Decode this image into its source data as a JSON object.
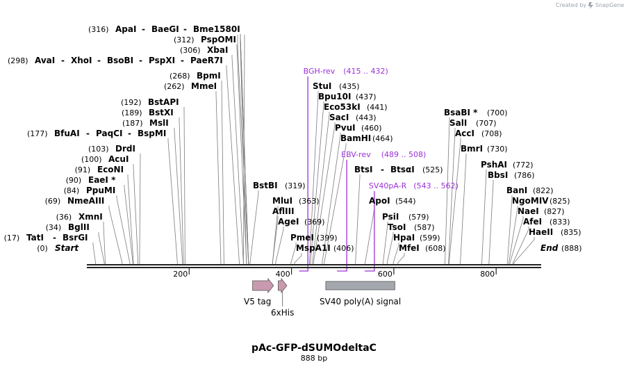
{
  "credit": "Created by",
  "brand": "SnapGene",
  "title": "pAc-GFP-dSUMOdeltaC",
  "length_label": "888 bp",
  "ruler": {
    "total_bp": 888,
    "ticks": [
      200,
      400,
      600,
      800
    ]
  },
  "sites": [
    {
      "row": 0,
      "parts": [
        {
          "t": "(316)",
          "k": "p"
        },
        {
          "t": "ApaI",
          "k": "n"
        },
        {
          "t": "-",
          "k": "s"
        },
        {
          "t": "BaeGI",
          "k": "n"
        },
        {
          "t": "-",
          "k": "s"
        },
        {
          "t": "Bme1580I",
          "k": "n"
        }
      ],
      "lines": [
        316,
        316,
        316
      ]
    },
    {
      "row": 1,
      "parts": [
        {
          "t": "(312)",
          "k": "p"
        },
        {
          "t": "PspOMI",
          "k": "n"
        }
      ],
      "lines": [
        312
      ]
    },
    {
      "row": 2,
      "parts": [
        {
          "t": "(298)",
          "k": "p"
        },
        {
          "t": "AvaI",
          "k": "n"
        },
        {
          "t": "-",
          "k": "s"
        },
        {
          "t": "XhoI",
          "k": "n"
        },
        {
          "t": "-",
          "k": "s"
        },
        {
          "t": "BsoBI",
          "k": "n"
        },
        {
          "t": "-",
          "k": "s"
        },
        {
          "t": "PspXI",
          "k": "n"
        },
        {
          "t": "-",
          "k": "s"
        },
        {
          "t": "PaeR7I",
          "k": "n"
        }
      ],
      "lines": [
        298
      ]
    },
    {
      "row": 3,
      "parts": [
        {
          "t": "(306)",
          "k": "p"
        },
        {
          "t": "XbaI",
          "k": "n"
        }
      ],
      "lines": [
        306
      ]
    },
    {
      "row": 4,
      "parts": [
        {
          "t": "(268)",
          "k": "p"
        },
        {
          "t": "BpmI",
          "k": "n"
        }
      ],
      "lines": [
        268
      ]
    },
    {
      "row": 5,
      "parts": [
        {
          "t": "(262)",
          "k": "p"
        },
        {
          "t": "MmeI",
          "k": "n"
        }
      ],
      "lines": [
        262
      ]
    },
    {
      "row": 6,
      "parts": [
        {
          "t": "(192)",
          "k": "p"
        },
        {
          "t": "BstAPI",
          "k": "n"
        }
      ],
      "lines": [
        192
      ]
    },
    {
      "row": 7,
      "parts": [
        {
          "t": "(189)",
          "k": "p"
        },
        {
          "t": "BstXI",
          "k": "n"
        }
      ],
      "lines": [
        189
      ]
    },
    {
      "row": 8,
      "parts": [
        {
          "t": "(187)",
          "k": "p"
        },
        {
          "t": "MslI",
          "k": "n"
        }
      ],
      "lines": [
        187
      ]
    },
    {
      "row": 9,
      "parts": [
        {
          "t": "(177)",
          "k": "p"
        },
        {
          "t": "BfuAI",
          "k": "n"
        },
        {
          "t": "-",
          "k": "s"
        },
        {
          "t": "PaqCI",
          "k": "n"
        },
        {
          "t": "-",
          "k": "s"
        },
        {
          "t": "BspMI",
          "k": "n"
        }
      ],
      "lines": [
        177
      ]
    },
    {
      "row": 10,
      "parts": [
        {
          "t": "(103)",
          "k": "p"
        },
        {
          "t": "DrdI",
          "k": "n"
        }
      ],
      "lines": [
        103
      ]
    },
    {
      "row": 11,
      "parts": [
        {
          "t": "(100)",
          "k": "p"
        },
        {
          "t": "AcuI",
          "k": "n"
        }
      ],
      "lines": [
        100
      ]
    },
    {
      "row": 12,
      "parts": [
        {
          "t": "(91)",
          "k": "p"
        },
        {
          "t": "EcoNI",
          "k": "n"
        }
      ],
      "lines": [
        91
      ]
    },
    {
      "row": 13,
      "parts": [
        {
          "t": "(90)",
          "k": "p"
        },
        {
          "t": "EaeI *",
          "k": "n"
        }
      ],
      "lines": [
        90
      ]
    },
    {
      "row": 14,
      "parts": [
        {
          "t": "(84)",
          "k": "p"
        },
        {
          "t": "PpuMI",
          "k": "n"
        }
      ],
      "lines": [
        84
      ]
    },
    {
      "row": 15,
      "parts": [
        {
          "t": "(69)",
          "k": "p"
        },
        {
          "t": "NmeAIII",
          "k": "n"
        }
      ],
      "lines": [
        69
      ]
    },
    {
      "row": 16,
      "parts": [
        {
          "t": "(36)",
          "k": "p"
        },
        {
          "t": "XmnI",
          "k": "n"
        }
      ],
      "lines": [
        36
      ]
    },
    {
      "row": 17,
      "parts": [
        {
          "t": "(34)",
          "k": "p"
        },
        {
          "t": "BglII",
          "k": "n"
        }
      ],
      "lines": [
        34
      ]
    },
    {
      "row": 18,
      "parts": [
        {
          "t": "(17)",
          "k": "p"
        },
        {
          "t": "TatI",
          "k": "n"
        },
        {
          "t": "-",
          "k": "s"
        },
        {
          "t": "BsrGI",
          "k": "n"
        }
      ],
      "lines": [
        17
      ]
    },
    {
      "row": 19,
      "parts": [
        {
          "t": "(0)",
          "k": "p"
        },
        {
          "t": "Start",
          "k": "i"
        }
      ],
      "lines": []
    },
    {
      "row": 20,
      "parts": [
        {
          "t": "BstBI",
          "k": "n"
        },
        {
          "t": "(319)",
          "k": "p"
        }
      ],
      "lines": [
        319
      ]
    },
    {
      "row": 21,
      "parts": [
        {
          "t": "MluI",
          "k": "n"
        },
        {
          "t": "(363)",
          "k": "p"
        }
      ],
      "lines": [
        363
      ]
    },
    {
      "row": 22,
      "parts": [
        {
          "t": "AflIII",
          "k": "n"
        }
      ],
      "lines": [
        363
      ]
    },
    {
      "row": 23,
      "parts": [
        {
          "t": "AgeI",
          "k": "n"
        },
        {
          "t": "(369)",
          "k": "p"
        }
      ],
      "lines": [
        369
      ]
    },
    {
      "row": 24,
      "parts": [
        {
          "t": "PmeI",
          "k": "n"
        },
        {
          "t": "(399)",
          "k": "p"
        }
      ],
      "lines": [
        399
      ]
    },
    {
      "row": 25,
      "parts": [
        {
          "t": "MspA1I",
          "k": "n"
        },
        {
          "t": "(406)",
          "k": "p"
        }
      ],
      "lines": [
        406
      ]
    },
    {
      "row": 26,
      "parts": [
        {
          "t": "StuI",
          "k": "n"
        },
        {
          "t": "(435)",
          "k": "p"
        }
      ],
      "lines": [
        435
      ]
    },
    {
      "row": 27,
      "parts": [
        {
          "t": "Bpu10I",
          "k": "n"
        },
        {
          "t": "(437)",
          "k": "p"
        }
      ],
      "lines": [
        437
      ]
    },
    {
      "row": 28,
      "parts": [
        {
          "t": "Eco53kI",
          "k": "n"
        },
        {
          "t": "(441)",
          "k": "p"
        }
      ],
      "lines": [
        441
      ]
    },
    {
      "row": 29,
      "parts": [
        {
          "t": "SacI",
          "k": "n"
        },
        {
          "t": "(443)",
          "k": "p"
        }
      ],
      "lines": [
        443
      ]
    },
    {
      "row": 30,
      "parts": [
        {
          "t": "PvuI",
          "k": "n"
        },
        {
          "t": "(460)",
          "k": "p"
        }
      ],
      "lines": [
        460
      ]
    },
    {
      "row": 31,
      "parts": [
        {
          "t": "BamHI",
          "k": "n"
        },
        {
          "t": "(464)",
          "k": "p"
        }
      ],
      "lines": [
        464
      ]
    },
    {
      "row": 32,
      "parts": [
        {
          "t": "BtsI",
          "k": "n"
        },
        {
          "t": "-",
          "k": "s"
        },
        {
          "t": "BtsαI",
          "k": "n"
        },
        {
          "t": "(525)",
          "k": "p"
        }
      ],
      "lines": [
        525
      ]
    },
    {
      "row": 33,
      "parts": [
        {
          "t": "ApoI",
          "k": "n"
        },
        {
          "t": "(544)",
          "k": "p"
        }
      ],
      "lines": [
        544
      ]
    },
    {
      "row": 34,
      "parts": [
        {
          "t": "PsiI",
          "k": "n"
        },
        {
          "t": "(579)",
          "k": "p"
        }
      ],
      "lines": [
        579
      ]
    },
    {
      "row": 35,
      "parts": [
        {
          "t": "TsoI",
          "k": "n"
        },
        {
          "t": "(587)",
          "k": "p"
        }
      ],
      "lines": [
        587
      ]
    },
    {
      "row": 36,
      "parts": [
        {
          "t": "HpaI",
          "k": "n"
        },
        {
          "t": "(599)",
          "k": "p"
        }
      ],
      "lines": [
        599
      ]
    },
    {
      "row": 37,
      "parts": [
        {
          "t": "MfeI",
          "k": "n"
        },
        {
          "t": "(608)",
          "k": "p"
        }
      ],
      "lines": [
        608
      ]
    },
    {
      "row": 38,
      "parts": [
        {
          "t": "BsaBI *",
          "k": "n"
        },
        {
          "t": "(700)",
          "k": "p"
        }
      ],
      "lines": [
        700
      ]
    },
    {
      "row": 39,
      "parts": [
        {
          "t": "SalI",
          "k": "n"
        },
        {
          "t": "(707)",
          "k": "p"
        }
      ],
      "lines": [
        707
      ]
    },
    {
      "row": 40,
      "parts": [
        {
          "t": "AccI",
          "k": "n"
        },
        {
          "t": "(708)",
          "k": "p"
        }
      ],
      "lines": [
        708
      ]
    },
    {
      "row": 41,
      "parts": [
        {
          "t": "BmrI",
          "k": "n"
        },
        {
          "t": "(730)",
          "k": "p"
        }
      ],
      "lines": [
        730
      ]
    },
    {
      "row": 42,
      "parts": [
        {
          "t": "PshAI",
          "k": "n"
        },
        {
          "t": "(772)",
          "k": "p"
        }
      ],
      "lines": [
        772
      ]
    },
    {
      "row": 43,
      "parts": [
        {
          "t": "BbsI",
          "k": "n"
        },
        {
          "t": "(786)",
          "k": "p"
        }
      ],
      "lines": [
        786
      ]
    },
    {
      "row": 44,
      "parts": [
        {
          "t": "BanI",
          "k": "n"
        },
        {
          "t": "(822)",
          "k": "p"
        }
      ],
      "lines": [
        822
      ]
    },
    {
      "row": 45,
      "parts": [
        {
          "t": "NgoMIV",
          "k": "n"
        },
        {
          "t": "(825)",
          "k": "p"
        }
      ],
      "lines": [
        825
      ]
    },
    {
      "row": 46,
      "parts": [
        {
          "t": "NaeI",
          "k": "n"
        },
        {
          "t": "(827)",
          "k": "p"
        }
      ],
      "lines": [
        827
      ]
    },
    {
      "row": 47,
      "parts": [
        {
          "t": "AfeI",
          "k": "n"
        },
        {
          "t": "(833)",
          "k": "p"
        }
      ],
      "lines": [
        833
      ]
    },
    {
      "row": 48,
      "parts": [
        {
          "t": "HaeII",
          "k": "n"
        },
        {
          "t": "(835)",
          "k": "p"
        }
      ],
      "lines": [
        835
      ]
    },
    {
      "row": 49,
      "parts": [
        {
          "t": "End",
          "k": "i"
        },
        {
          "t": "(888)",
          "k": "p"
        }
      ],
      "lines": []
    }
  ],
  "primers": [
    {
      "name": "BGH-rev",
      "range": "(415 .. 432)",
      "start": 415,
      "end": 432
    },
    {
      "name": "EBV-rev",
      "range": "(489 .. 508)",
      "start": 489,
      "end": 508
    },
    {
      "name": "SV40pA-R",
      "range": "(543 .. 562)",
      "start": 543,
      "end": 562
    }
  ],
  "features": [
    {
      "name": "V5 tag",
      "start": 324,
      "end": 365,
      "color": "#c99aaf"
    },
    {
      "name": "6xHis",
      "start": 374,
      "end": 391,
      "color": "#c99aaf"
    },
    {
      "name": "SV40 poly(A) signal",
      "start": 467,
      "end": 602,
      "color": "#a4a8ae"
    }
  ]
}
